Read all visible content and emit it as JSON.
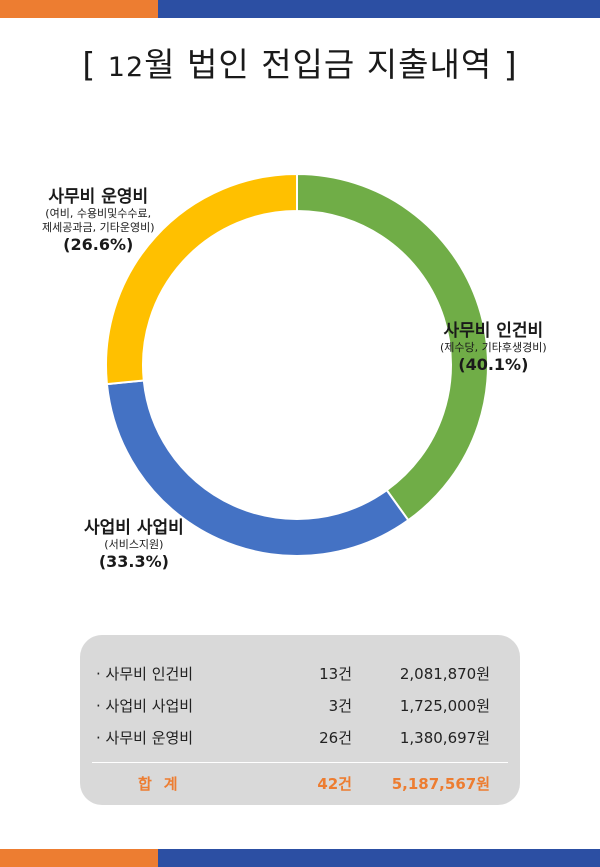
{
  "title": {
    "prefix": "[ ",
    "month": "12",
    "text": "월  법인 전입금 지출내역",
    "suffix": " ]"
  },
  "colors": {
    "orange": "#ed7d31",
    "blue": "#2c4fa3",
    "green": "#70ad47",
    "royal": "#4472c4",
    "gold": "#ffc000",
    "panel": "#d9d9d9"
  },
  "chart_data": {
    "type": "pie",
    "style": "donut",
    "slices": [
      {
        "name": "사무비 인건비",
        "detail": "(제수당, 기타후생경비)",
        "percent": 40.1,
        "percent_label": "(40.1%)",
        "color": "#70ad47"
      },
      {
        "name": "사업비 사업비",
        "detail": "(서비스지원)",
        "percent": 33.3,
        "percent_label": "(33.3%)",
        "color": "#4472c4"
      },
      {
        "name": "사무비 운영비",
        "detail_lines": [
          "(여비, 수용비및수수료,",
          "제세공과금, 기타운영비)"
        ],
        "percent": 26.6,
        "percent_label": "(26.6%)",
        "color": "#ffc000"
      }
    ]
  },
  "summary": {
    "rows": [
      {
        "category": "· 사무비 인건비",
        "count": "13건",
        "amount": "2,081,870원"
      },
      {
        "category": "· 사업비 사업비",
        "count": "3건",
        "amount": "1,725,000원"
      },
      {
        "category": "· 사무비 운영비",
        "count": "26건",
        "amount": "1,380,697원"
      }
    ],
    "total": {
      "label": "합계",
      "count": "42건",
      "amount": "5,187,567원"
    }
  }
}
